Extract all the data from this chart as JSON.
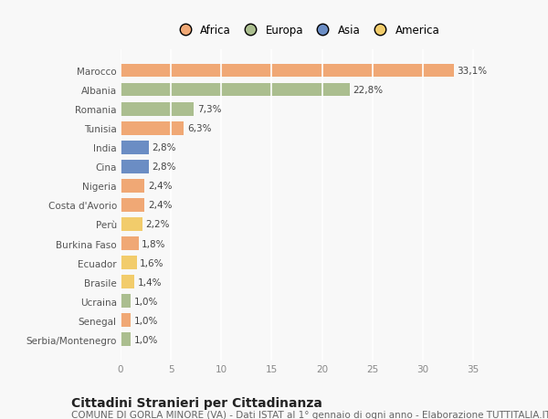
{
  "countries": [
    "Serbia/Montenegro",
    "Senegal",
    "Ucraina",
    "Brasile",
    "Ecuador",
    "Burkina Faso",
    "Perù",
    "Costa d'Avorio",
    "Nigeria",
    "Cina",
    "India",
    "Tunisia",
    "Romania",
    "Albania",
    "Marocco"
  ],
  "values": [
    1.0,
    1.0,
    1.0,
    1.4,
    1.6,
    1.8,
    2.2,
    2.4,
    2.4,
    2.8,
    2.8,
    6.3,
    7.3,
    22.8,
    33.1
  ],
  "labels": [
    "1,0%",
    "1,0%",
    "1,0%",
    "1,4%",
    "1,6%",
    "1,8%",
    "2,2%",
    "2,4%",
    "2,4%",
    "2,8%",
    "2,8%",
    "6,3%",
    "7,3%",
    "22,8%",
    "33,1%"
  ],
  "continents": [
    "Europa",
    "Africa",
    "Europa",
    "America",
    "America",
    "Africa",
    "America",
    "Africa",
    "Africa",
    "Asia",
    "Asia",
    "Africa",
    "Europa",
    "Europa",
    "Africa"
  ],
  "continent_colors": {
    "Africa": "#F0A875",
    "Europa": "#ABBE8F",
    "Asia": "#6B8DC4",
    "America": "#F2CC6B"
  },
  "legend_order": [
    "Africa",
    "Europa",
    "Asia",
    "America"
  ],
  "title": "Cittadini Stranieri per Cittadinanza",
  "subtitle": "COMUNE DI GORLA MINORE (VA) - Dati ISTAT al 1° gennaio di ogni anno - Elaborazione TUTTITALIA.IT",
  "xlim": [
    0,
    37
  ],
  "xticks": [
    0,
    5,
    10,
    15,
    20,
    25,
    30,
    35
  ],
  "background_color": "#f8f8f8",
  "plot_bg_color": "#f8f8f8",
  "grid_color": "#ffffff",
  "bar_height": 0.7,
  "title_fontsize": 10,
  "subtitle_fontsize": 7.5,
  "label_fontsize": 7.5,
  "tick_fontsize": 7.5,
  "legend_fontsize": 8.5
}
